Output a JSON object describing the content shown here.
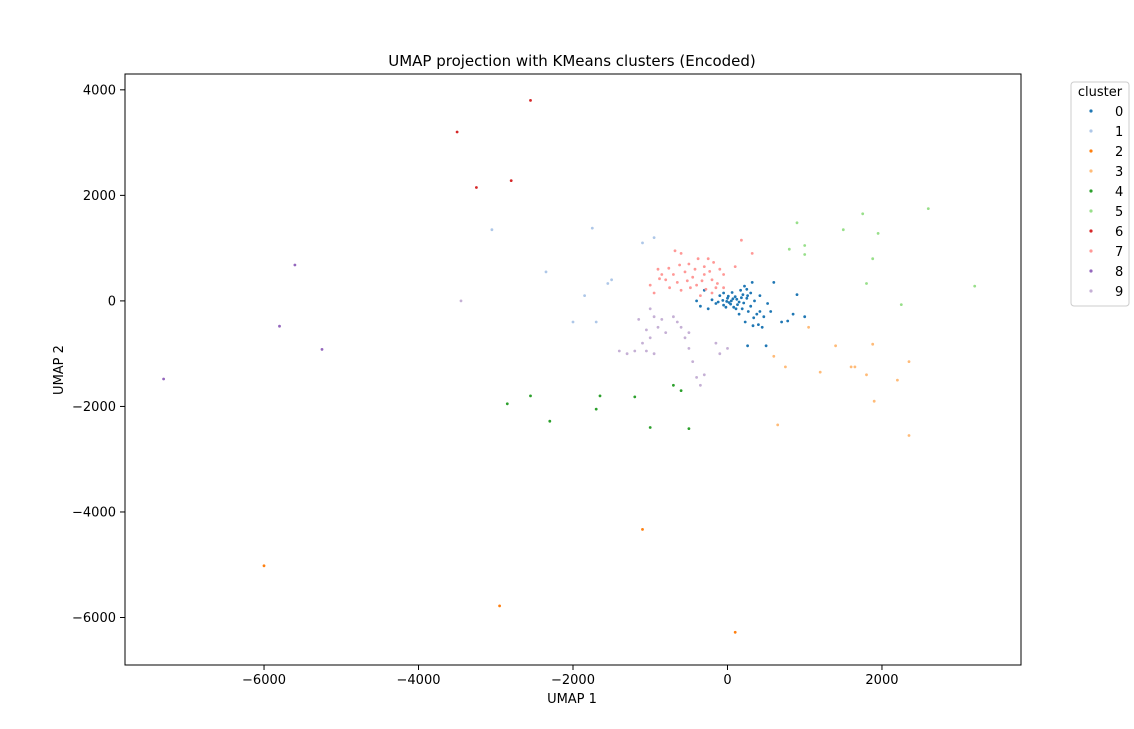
{
  "chart_data": {
    "type": "scatter",
    "title": "UMAP projection with KMeans clusters (Encoded)",
    "xlabel": "UMAP 1",
    "ylabel": "UMAP 2",
    "xlim": [
      -7800,
      3800
    ],
    "ylim": [
      -6900,
      4300
    ],
    "xticks": [
      -6000,
      -4000,
      -2000,
      0,
      2000
    ],
    "yticks": [
      -6000,
      -4000,
      -2000,
      0,
      2000,
      4000
    ],
    "xtick_labels": [
      "−6000",
      "−4000",
      "−2000",
      "0",
      "2000"
    ],
    "ytick_labels": [
      "−6000",
      "−4000",
      "−2000",
      "0",
      "2000",
      "4000"
    ],
    "grid": false,
    "legend": {
      "title": "cluster",
      "placement": "outside-right"
    },
    "series": [
      {
        "name": "0",
        "color": "#1f77b4",
        "points": [
          [
            -100,
            100
          ],
          [
            -50,
            150
          ],
          [
            0,
            50
          ],
          [
            50,
            0
          ],
          [
            100,
            80
          ],
          [
            150,
            -20
          ],
          [
            200,
            120
          ],
          [
            250,
            50
          ],
          [
            300,
            -100
          ],
          [
            350,
            0
          ],
          [
            -150,
            -50
          ],
          [
            -200,
            20
          ],
          [
            -250,
            -150
          ],
          [
            -50,
            -80
          ],
          [
            20,
            -30
          ],
          [
            80,
            -120
          ],
          [
            120,
            30
          ],
          [
            170,
            200
          ],
          [
            220,
            280
          ],
          [
            270,
            -200
          ],
          [
            320,
            350
          ],
          [
            380,
            -250
          ],
          [
            420,
            100
          ],
          [
            470,
            -300
          ],
          [
            520,
            -50
          ],
          [
            560,
            -200
          ],
          [
            600,
            350
          ],
          [
            700,
            -400
          ],
          [
            780,
            -380
          ],
          [
            850,
            -250
          ],
          [
            900,
            120
          ],
          [
            1000,
            -300
          ],
          [
            -300,
            200
          ],
          [
            -350,
            -100
          ],
          [
            -400,
            0
          ],
          [
            -60,
            10
          ],
          [
            -10,
            -10
          ],
          [
            40,
            -60
          ],
          [
            10,
            90
          ],
          [
            70,
            40
          ],
          [
            130,
            -70
          ],
          [
            190,
            -150
          ],
          [
            250,
            220
          ],
          [
            300,
            150
          ],
          [
            150,
            -250
          ],
          [
            450,
            -500
          ],
          [
            500,
            -850
          ],
          [
            260,
            -850
          ],
          [
            230,
            -400
          ],
          [
            330,
            -470
          ],
          [
            400,
            -450
          ],
          [
            -20,
            -120
          ],
          [
            60,
            160
          ],
          [
            -120,
            -20
          ],
          [
            110,
            -150
          ],
          [
            180,
            60
          ],
          [
            210,
            -40
          ],
          [
            260,
            100
          ],
          [
            340,
            -320
          ],
          [
            420,
            -200
          ]
        ]
      },
      {
        "name": "1",
        "color": "#aec7e8",
        "points": [
          [
            -3050,
            1350
          ],
          [
            -2350,
            550
          ],
          [
            -1750,
            1380
          ],
          [
            -1500,
            400
          ],
          [
            -1100,
            1100
          ],
          [
            -950,
            1200
          ],
          [
            -2000,
            -400
          ],
          [
            -1700,
            -400
          ],
          [
            -1850,
            100
          ],
          [
            -1550,
            330
          ]
        ]
      },
      {
        "name": "2",
        "color": "#ff7f0e",
        "points": [
          [
            -6000,
            -5020
          ],
          [
            -2950,
            -5780
          ],
          [
            -1100,
            -4330
          ],
          [
            100,
            -6280
          ]
        ]
      },
      {
        "name": "3",
        "color": "#ffbb78",
        "points": [
          [
            1050,
            -500
          ],
          [
            1400,
            -850
          ],
          [
            1600,
            -1250
          ],
          [
            1800,
            -1400
          ],
          [
            1900,
            -1900
          ],
          [
            2200,
            -1500
          ],
          [
            2350,
            -1150
          ],
          [
            2350,
            -2550
          ],
          [
            1200,
            -1350
          ],
          [
            650,
            -2350
          ],
          [
            600,
            -1050
          ],
          [
            750,
            -1250
          ],
          [
            1650,
            -1250
          ],
          [
            1880,
            -820
          ]
        ]
      },
      {
        "name": "4",
        "color": "#2ca02c",
        "points": [
          [
            -2850,
            -1950
          ],
          [
            -2550,
            -1800
          ],
          [
            -2300,
            -2280
          ],
          [
            -1700,
            -2050
          ],
          [
            -1650,
            -1800
          ],
          [
            -1200,
            -1820
          ],
          [
            -1000,
            -2400
          ],
          [
            -700,
            -1600
          ],
          [
            -500,
            -2420
          ],
          [
            -600,
            -1700
          ]
        ]
      },
      {
        "name": "5",
        "color": "#98df8a",
        "points": [
          [
            900,
            1480
          ],
          [
            1000,
            1050
          ],
          [
            1000,
            880
          ],
          [
            800,
            980
          ],
          [
            1500,
            1350
          ],
          [
            1750,
            1650
          ],
          [
            1950,
            1280
          ],
          [
            1880,
            800
          ],
          [
            1800,
            330
          ],
          [
            2250,
            -70
          ],
          [
            2600,
            1750
          ],
          [
            3200,
            280
          ]
        ]
      },
      {
        "name": "6",
        "color": "#d62728",
        "points": [
          [
            -2550,
            3800
          ],
          [
            -3500,
            3200
          ],
          [
            -2800,
            2280
          ],
          [
            -3250,
            2150
          ]
        ]
      },
      {
        "name": "7",
        "color": "#ff9896",
        "points": [
          [
            -1000,
            300
          ],
          [
            -900,
            600
          ],
          [
            -800,
            400
          ],
          [
            -700,
            500
          ],
          [
            -600,
            200
          ],
          [
            -500,
            700
          ],
          [
            -400,
            300
          ],
          [
            -300,
            500
          ],
          [
            -250,
            800
          ],
          [
            -200,
            400
          ],
          [
            -150,
            250
          ],
          [
            -100,
            600
          ],
          [
            -50,
            500
          ],
          [
            -350,
            100
          ],
          [
            -450,
            450
          ],
          [
            -550,
            550
          ],
          [
            -650,
            350
          ],
          [
            -750,
            250
          ],
          [
            -850,
            500
          ],
          [
            -950,
            150
          ],
          [
            -300,
            650
          ],
          [
            -200,
            150
          ],
          [
            -380,
            800
          ],
          [
            -480,
            250
          ],
          [
            -680,
            950
          ],
          [
            -600,
            900
          ],
          [
            -420,
            600
          ],
          [
            -520,
            380
          ],
          [
            -330,
            380
          ],
          [
            -280,
            220
          ],
          [
            180,
            1150
          ],
          [
            320,
            900
          ],
          [
            100,
            650
          ],
          [
            -50,
            250
          ],
          [
            -180,
            730
          ],
          [
            -620,
            680
          ],
          [
            -880,
            420
          ],
          [
            -760,
            620
          ],
          [
            -230,
            560
          ],
          [
            -130,
            330
          ]
        ]
      },
      {
        "name": "8",
        "color": "#9467bd",
        "points": [
          [
            -7300,
            -1480
          ],
          [
            -5600,
            680
          ],
          [
            -5800,
            -480
          ],
          [
            -5250,
            -920
          ]
        ]
      },
      {
        "name": "9",
        "color": "#c5b0d5",
        "points": [
          [
            -3450,
            0
          ],
          [
            -1400,
            -950
          ],
          [
            -1300,
            -1000
          ],
          [
            -1200,
            -950
          ],
          [
            -1100,
            -800
          ],
          [
            -1000,
            -700
          ],
          [
            -900,
            -500
          ],
          [
            -800,
            -600
          ],
          [
            -700,
            -300
          ],
          [
            -600,
            -500
          ],
          [
            -500,
            -900
          ],
          [
            -400,
            -1450
          ],
          [
            -350,
            -1600
          ],
          [
            -1000,
            -150
          ],
          [
            -1150,
            -350
          ],
          [
            -1050,
            -550
          ],
          [
            -950,
            -300
          ],
          [
            -850,
            -350
          ],
          [
            -550,
            -700
          ],
          [
            -450,
            -1150
          ],
          [
            -300,
            -1400
          ],
          [
            -150,
            -800
          ],
          [
            -100,
            -1000
          ],
          [
            0,
            -900
          ],
          [
            -1050,
            -950
          ],
          [
            -950,
            -1000
          ],
          [
            -500,
            -600
          ],
          [
            -650,
            -400
          ]
        ]
      }
    ]
  }
}
